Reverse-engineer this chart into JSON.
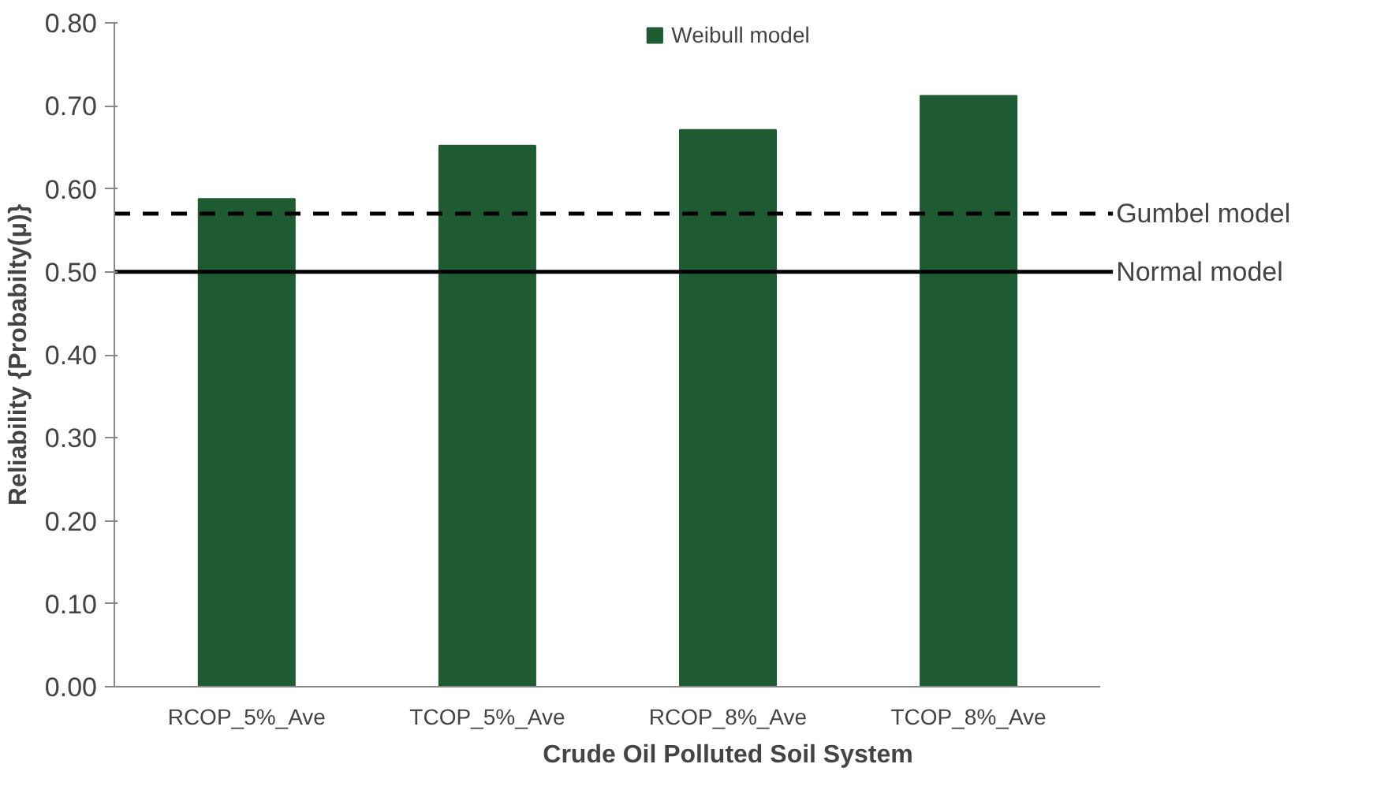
{
  "chart_data": {
    "type": "bar",
    "xlabel": "Crude Oil Polluted Soil System",
    "ylabel": "Reliability {Probabilty(μ)}",
    "categories": [
      "RCOP_5%_Ave",
      "TCOP_5%_Ave",
      "RCOP_8%_Ave",
      "TCOP_8%_Ave"
    ],
    "series": [
      {
        "name": "Weibull model",
        "color": "#1e5a32",
        "values": [
          0.588,
          0.652,
          0.671,
          0.712
        ]
      }
    ],
    "ylim": [
      0,
      0.8
    ],
    "yticks": [
      {
        "value": 0,
        "label": "0.00"
      },
      {
        "value": 0.1,
        "label": "0.10"
      },
      {
        "value": 0.2,
        "label": "0.20"
      },
      {
        "value": 0.3,
        "label": "0.30"
      },
      {
        "value": 0.4,
        "label": "0.40"
      },
      {
        "value": 0.5,
        "label": "0.50"
      },
      {
        "value": 0.6,
        "label": "0.60"
      },
      {
        "value": 0.7,
        "label": "0.70"
      },
      {
        "value": 0.8,
        "label": "0.80"
      }
    ],
    "ref_lines": [
      {
        "axis": "y",
        "value": 0.57,
        "label": "Gumbel model",
        "line_style": "dashed",
        "color": "#000000"
      },
      {
        "axis": "y",
        "value": 0.5,
        "label": "Normal model",
        "line_style": "solid",
        "color": "#000000"
      }
    ],
    "legend": "top",
    "grid": false
  }
}
